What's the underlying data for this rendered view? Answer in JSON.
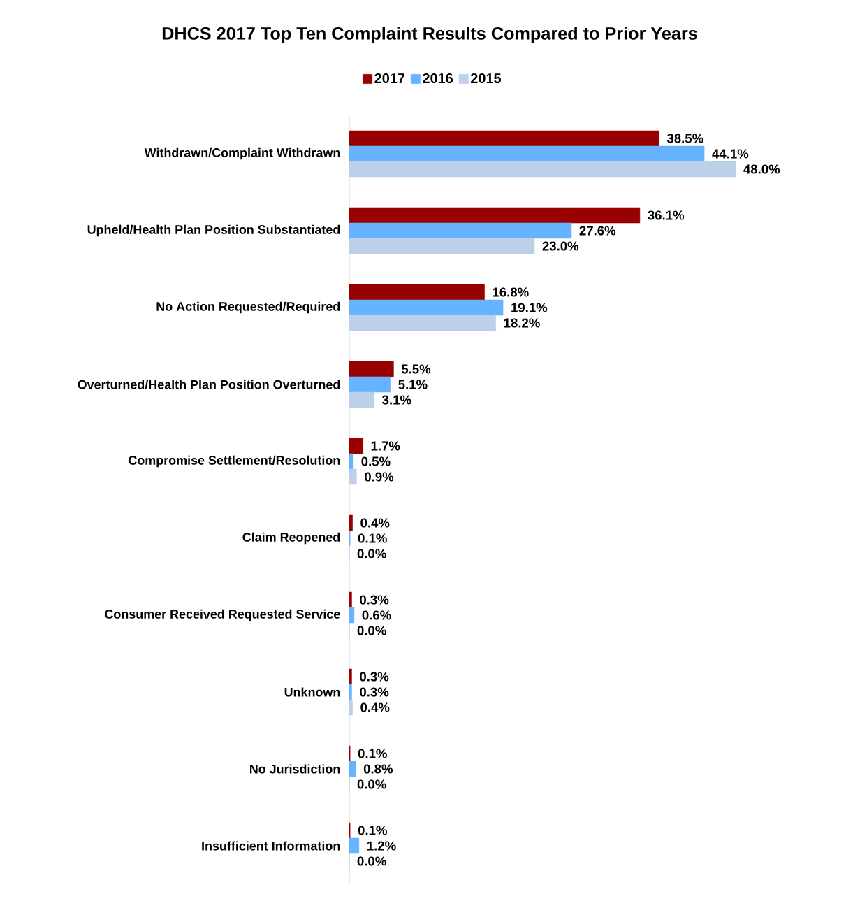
{
  "chart_data": {
    "type": "bar",
    "orientation": "horizontal",
    "title": "DHCS 2017 Top Ten Complaint Results Compared to Prior Years",
    "categories": [
      "Withdrawn/Complaint Withdrawn",
      "Upheld/Health Plan Position Substantiated",
      "No Action Requested/Required",
      "Overturned/Health Plan Position Overturned",
      "Compromise Settlement/Resolution",
      "Claim Reopened",
      "Consumer Received Requested Service",
      "Unknown",
      "No Jurisdiction",
      "Insufficient Information"
    ],
    "series": [
      {
        "name": "2017",
        "color": "#990000",
        "values": [
          38.5,
          36.1,
          16.8,
          5.5,
          1.7,
          0.4,
          0.3,
          0.3,
          0.1,
          0.1
        ],
        "value_labels": [
          "38.5%",
          "36.1%",
          "16.8%",
          "5.5%",
          "1.7%",
          "0.4%",
          "0.3%",
          "0.3%",
          "0.1%",
          "0.1%"
        ]
      },
      {
        "name": "2016",
        "color": "#66b3ff",
        "values": [
          44.1,
          27.6,
          19.1,
          5.1,
          0.5,
          0.1,
          0.6,
          0.3,
          0.8,
          1.2
        ],
        "value_labels": [
          "44.1%",
          "27.6%",
          "19.1%",
          "5.1%",
          "0.5%",
          "0.1%",
          "0.6%",
          "0.3%",
          "0.8%",
          "1.2%"
        ]
      },
      {
        "name": "2015",
        "color": "#bdd0ea",
        "values": [
          48.0,
          23.0,
          18.2,
          3.1,
          0.9,
          0.0,
          0.0,
          0.4,
          0.0,
          0.0
        ],
        "value_labels": [
          "48.0%",
          "23.0%",
          "18.2%",
          "3.1%",
          "0.9%",
          "0.0%",
          "0.0%",
          "0.4%",
          "0.0%",
          "0.0%"
        ]
      }
    ],
    "legend": "top"
  }
}
